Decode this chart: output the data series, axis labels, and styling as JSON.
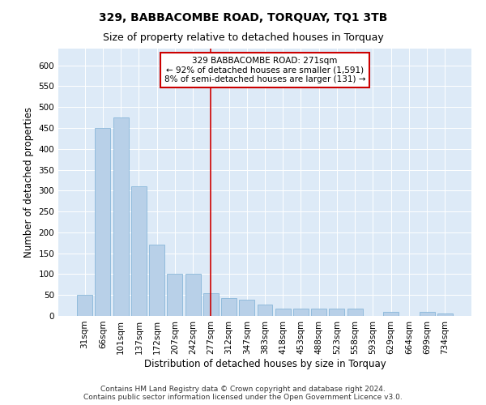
{
  "title": "329, BABBACOMBE ROAD, TORQUAY, TQ1 3TB",
  "subtitle": "Size of property relative to detached houses in Torquay",
  "xlabel": "Distribution of detached houses by size in Torquay",
  "ylabel": "Number of detached properties",
  "categories": [
    "31sqm",
    "66sqm",
    "101sqm",
    "137sqm",
    "172sqm",
    "207sqm",
    "242sqm",
    "277sqm",
    "312sqm",
    "347sqm",
    "383sqm",
    "418sqm",
    "453sqm",
    "488sqm",
    "523sqm",
    "558sqm",
    "593sqm",
    "629sqm",
    "664sqm",
    "699sqm",
    "734sqm"
  ],
  "values": [
    50,
    450,
    475,
    310,
    170,
    100,
    100,
    55,
    43,
    38,
    28,
    18,
    17,
    17,
    17,
    17,
    0,
    10,
    0,
    10,
    5
  ],
  "bar_color": "#b8d0e8",
  "bar_edge_color": "#7aafd4",
  "vline_x_index": 7,
  "vline_color": "#cc0000",
  "annotation_line1": "329 BABBACOMBE ROAD: 271sqm",
  "annotation_line2": "← 92% of detached houses are smaller (1,591)",
  "annotation_line3": "8% of semi-detached houses are larger (131) →",
  "annotation_box_color": "#ffffff",
  "annotation_box_edge_color": "#cc0000",
  "plot_bg_color": "#ddeaf7",
  "ylim": [
    0,
    640
  ],
  "yticks": [
    0,
    50,
    100,
    150,
    200,
    250,
    300,
    350,
    400,
    450,
    500,
    550,
    600
  ],
  "footer_line1": "Contains HM Land Registry data © Crown copyright and database right 2024.",
  "footer_line2": "Contains public sector information licensed under the Open Government Licence v3.0.",
  "title_fontsize": 10,
  "subtitle_fontsize": 9,
  "xlabel_fontsize": 8.5,
  "ylabel_fontsize": 8.5,
  "tick_fontsize": 7.5,
  "annotation_fontsize": 7.5,
  "footer_fontsize": 6.5
}
